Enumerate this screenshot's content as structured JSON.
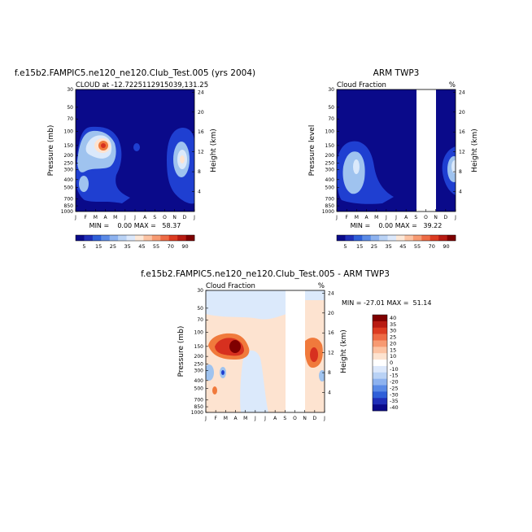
{
  "palette": {
    "dark_navy": "#0a0a8a",
    "blue": "#1f3fd1",
    "light_blue": "#9fc3ef",
    "pale_blue": "#dbe9fb",
    "pale_peach": "#fde3d0",
    "orange": "#f07a3c",
    "red": "#d7301f",
    "dark_red": "#7f0000",
    "gap": "#ffffff"
  },
  "month_ticks": [
    "J",
    "F",
    "M",
    "A",
    "M",
    "J",
    "J",
    "A",
    "S",
    "O",
    "N",
    "D",
    "J"
  ],
  "pressure_ticks": [
    "30",
    "50",
    "70",
    "100",
    "150",
    "200",
    "250",
    "300",
    "400",
    "500",
    "700",
    "850",
    "1000"
  ],
  "height_ticks": [
    "24",
    "20",
    "16",
    "12",
    "8",
    "4"
  ],
  "panels": {
    "model": {
      "title": "f.e15b2.FAMPIC5.ne120_ne120.Club_Test.005 (yrs 2004)",
      "subtitle_left": "CLOUD at -12.7225112915039,131.25",
      "subtitle_right": "",
      "ylabel_left": "Pressure (mb)",
      "ylabel_right": "Height (km)",
      "stats": "MIN =    0.00 MAX =   58.37"
    },
    "obs": {
      "title": "ARM TWP3",
      "subtitle_left": "Cloud Fraction",
      "subtitle_right": "%",
      "ylabel_left": "Pressure level",
      "ylabel_right": "Height (km)",
      "stats": "MIN =    0.00 MAX =   39.22"
    },
    "diff": {
      "title": "f.e15b2.FAMPIC5.ne120_ne120.Club_Test.005 - ARM TWP3",
      "subtitle_left": "Cloud Fraction",
      "subtitle_right": "%",
      "ylabel_left": "Pressure (mb)",
      "ylabel_right": "Height (km)",
      "stats": "MIN = -27.01 MAX =  51.14"
    }
  },
  "colorbar_main": {
    "labels": [
      "5",
      "15",
      "25",
      "35",
      "45",
      "55",
      "70",
      "90"
    ],
    "colors": [
      "#0a0a8a",
      "#1f2fb8",
      "#2f5fd8",
      "#5a8ae6",
      "#8db2ef",
      "#b9d2f5",
      "#dce8fb",
      "#fde8d8",
      "#fcc3a3",
      "#f79a72",
      "#ee6b45",
      "#dc3b21",
      "#b81b12",
      "#7f0000"
    ]
  },
  "colorbar_diff": {
    "labels": [
      "40",
      "35",
      "30",
      "25",
      "20",
      "15",
      "10",
      "0",
      "-10",
      "-15",
      "-20",
      "-25",
      "-30",
      "-35",
      "-40"
    ],
    "colors": [
      "#7f0000",
      "#b81b12",
      "#dc3b21",
      "#ee6b45",
      "#f79a72",
      "#fcc3a3",
      "#fde3d0",
      "#ffffff",
      "#dce8fb",
      "#b9d2f5",
      "#8db2ef",
      "#5a8ae6",
      "#2f5fd8",
      "#1f2fb8",
      "#0a0a8a"
    ]
  },
  "chart_data": [
    {
      "type": "heatmap",
      "title": "f.e15b2.FAMPIC5.ne120_ne120.Club_Test.005 (yrs 2004)",
      "subtitle": "CLOUD at -12.7225112915039,131.25",
      "x": [
        "J",
        "F",
        "M",
        "A",
        "M",
        "J",
        "J",
        "A",
        "S",
        "O",
        "N",
        "D",
        "J"
      ],
      "y_pressure": [
        "30",
        "50",
        "70",
        "100",
        "150",
        "200",
        "250",
        "300",
        "400",
        "500",
        "700",
        "850",
        "1000"
      ],
      "ylabel": "Pressure (mb)",
      "ylabel_right": "Height (km)",
      "min": 0.0,
      "max": 58.37
    },
    {
      "type": "heatmap",
      "title": "ARM TWP3",
      "subtitle": "Cloud Fraction",
      "units": "%",
      "x": [
        "J",
        "F",
        "M",
        "A",
        "M",
        "J",
        "J",
        "A",
        "S",
        "O",
        "N",
        "D",
        "J"
      ],
      "y_pressure": [
        "30",
        "50",
        "70",
        "100",
        "150",
        "200",
        "250",
        "300",
        "400",
        "500",
        "700",
        "850",
        "1000"
      ],
      "ylabel": "Pressure level",
      "ylabel_right": "Height (km)",
      "missing_months": [
        "S",
        "O"
      ],
      "min": 0.0,
      "max": 39.22
    },
    {
      "type": "heatmap",
      "title": "f.e15b2.FAMPIC5.ne120_ne120.Club_Test.005 - ARM TWP3",
      "subtitle": "Cloud Fraction",
      "units": "%",
      "x": [
        "J",
        "F",
        "M",
        "A",
        "M",
        "J",
        "J",
        "A",
        "S",
        "O",
        "N",
        "D",
        "J"
      ],
      "y_pressure": [
        "30",
        "50",
        "70",
        "100",
        "150",
        "200",
        "250",
        "300",
        "400",
        "500",
        "700",
        "850",
        "1000"
      ],
      "ylabel": "Pressure (mb)",
      "ylabel_right": "Height (km)",
      "missing_months": [
        "S",
        "O"
      ],
      "min": -27.01,
      "max": 51.14
    }
  ]
}
